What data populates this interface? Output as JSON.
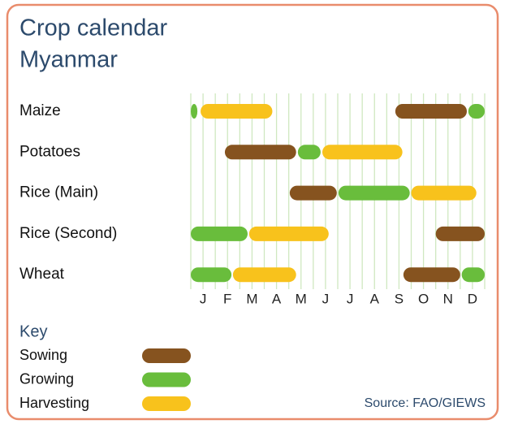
{
  "chart_data": {
    "type": "gantt",
    "title": [
      "Crop calendar",
      "Myanmar"
    ],
    "categories": [
      "J",
      "F",
      "M",
      "A",
      "M",
      "J",
      "J",
      "A",
      "S",
      "O",
      "N",
      "D"
    ],
    "xlim": [
      0,
      12
    ],
    "legend_title": "Key",
    "series": [
      {
        "name": "Sowing",
        "color": "#86531f"
      },
      {
        "name": "Growing",
        "color": "#69bd3c"
      },
      {
        "name": "Harvesting",
        "color": "#f8c21c"
      }
    ],
    "rows": [
      {
        "name": "Maize",
        "segments": [
          {
            "stage": 1,
            "start": 0,
            "end": 0.27
          },
          {
            "stage": 2,
            "start": 0.4,
            "end": 3.33
          },
          {
            "stage": 0,
            "start": 8.35,
            "end": 11.27
          },
          {
            "stage": 1,
            "start": 11.33,
            "end": 12
          }
        ]
      },
      {
        "name": "Potatoes",
        "segments": [
          {
            "stage": 0,
            "start": 1.39,
            "end": 4.3
          },
          {
            "stage": 1,
            "start": 4.37,
            "end": 5.3
          },
          {
            "stage": 2,
            "start": 5.37,
            "end": 8.64
          }
        ]
      },
      {
        "name": "Rice (Main)",
        "segments": [
          {
            "stage": 0,
            "start": 4.04,
            "end": 5.96
          },
          {
            "stage": 1,
            "start": 6.03,
            "end": 8.94
          },
          {
            "stage": 2,
            "start": 9.0,
            "end": 11.66
          }
        ]
      },
      {
        "name": "Rice (Second)",
        "segments": [
          {
            "stage": 1,
            "start": 0,
            "end": 2.32
          },
          {
            "stage": 2,
            "start": 2.38,
            "end": 5.63
          },
          {
            "stage": 0,
            "start": 10,
            "end": 12
          }
        ]
      },
      {
        "name": "Wheat",
        "segments": [
          {
            "stage": 1,
            "start": 0,
            "end": 1.66
          },
          {
            "stage": 2,
            "start": 1.72,
            "end": 4.3
          },
          {
            "stage": 0,
            "start": 8.68,
            "end": 11.0
          },
          {
            "stage": 1,
            "start": 11.06,
            "end": 12
          }
        ]
      }
    ],
    "source": "Source: FAO/GIEWS"
  }
}
